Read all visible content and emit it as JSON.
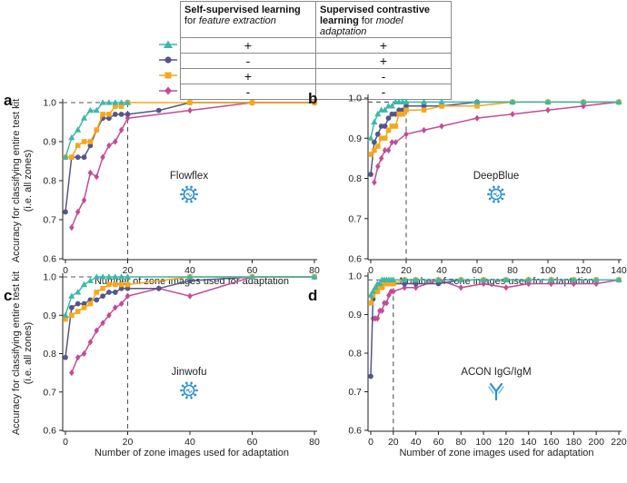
{
  "legend": {
    "col1_title": "Self-supervised learning",
    "col1_for": "for ",
    "col1_italic": "feature extraction",
    "col2_title_a": "Supervised contrastive",
    "col2_title_b": "learning",
    "col2_for": " for ",
    "col2_italic": "model adaptation",
    "rows": [
      {
        "marker": "triangle",
        "color": "#3db8a8",
        "ssl": "+",
        "scl": "+"
      },
      {
        "marker": "circle",
        "color": "#55558c",
        "ssl": "-",
        "scl": "+"
      },
      {
        "marker": "square",
        "color": "#f5a81b",
        "ssl": "+",
        "scl": "-"
      },
      {
        "marker": "diamond",
        "color": "#c24c96",
        "ssl": "-",
        "scl": "-"
      }
    ]
  },
  "shared_ylabel_line1": "Accuracy for classifying entire test kit",
  "shared_ylabel_line2": "(i.e. all zones)",
  "chart_data": [
    {
      "panel": "a",
      "type": "line",
      "title": "Flowflex",
      "icon": "virus",
      "xlabel": "Number of zone images used for adaptation",
      "xlim": [
        0,
        80
      ],
      "ylim": [
        0.6,
        1.0
      ],
      "xticks": [
        0,
        20,
        40,
        60,
        80
      ],
      "yticks": [
        0.6,
        0.7,
        0.8,
        0.9,
        1.0
      ],
      "ref_x": 20,
      "ref_y": 1.0,
      "series": [
        {
          "name": "diamond",
          "x": [
            2,
            4,
            6,
            8,
            10,
            12,
            14,
            16,
            18,
            20,
            40,
            60,
            80
          ],
          "y": [
            0.68,
            0.72,
            0.75,
            0.82,
            0.81,
            0.86,
            0.89,
            0.9,
            0.93,
            0.96,
            0.98,
            1.0,
            1.0
          ]
        },
        {
          "name": "circle",
          "x": [
            0,
            2,
            4,
            6,
            8,
            10,
            12,
            14,
            16,
            18,
            20,
            30,
            40,
            60,
            80
          ],
          "y": [
            0.72,
            0.86,
            0.86,
            0.86,
            0.89,
            0.93,
            0.96,
            0.96,
            0.97,
            0.97,
            0.97,
            0.98,
            1.0,
            1.0,
            1.0
          ]
        },
        {
          "name": "square",
          "x": [
            0,
            2,
            4,
            6,
            8,
            10,
            12,
            14,
            16,
            18,
            20,
            40,
            60,
            80
          ],
          "y": [
            0.86,
            0.86,
            0.89,
            0.9,
            0.9,
            0.93,
            0.97,
            0.97,
            0.99,
            0.99,
            1.0,
            1.0,
            1.0,
            1.0
          ]
        },
        {
          "name": "triangle",
          "x": [
            0,
            2,
            4,
            6,
            8,
            10,
            12,
            14,
            16,
            18,
            20
          ],
          "y": [
            0.86,
            0.91,
            0.93,
            0.96,
            0.98,
            0.98,
            1.0,
            1.0,
            1.0,
            1.0,
            1.0
          ]
        }
      ]
    },
    {
      "panel": "b",
      "type": "line",
      "title": "DeepBlue",
      "icon": "virus",
      "xlabel": "Number of zone images used for adaptation",
      "xlim": [
        0,
        140
      ],
      "ylim": [
        0.6,
        1.0
      ],
      "xticks": [
        0,
        20,
        40,
        60,
        80,
        100,
        120,
        140
      ],
      "yticks": [
        0.6,
        0.7,
        0.8,
        0.9,
        1.0
      ],
      "ref_x": 20,
      "ref_y": 0.99,
      "series": [
        {
          "name": "diamond",
          "x": [
            2,
            4,
            6,
            8,
            10,
            12,
            14,
            20,
            30,
            40,
            60,
            80,
            100,
            120,
            140
          ],
          "y": [
            0.79,
            0.83,
            0.85,
            0.87,
            0.87,
            0.89,
            0.89,
            0.91,
            0.92,
            0.93,
            0.95,
            0.96,
            0.97,
            0.98,
            0.99
          ]
        },
        {
          "name": "circle",
          "x": [
            0,
            2,
            4,
            6,
            8,
            10,
            12,
            14,
            16,
            18,
            20,
            30,
            40,
            60,
            80,
            100,
            120,
            140
          ],
          "y": [
            0.81,
            0.89,
            0.91,
            0.93,
            0.93,
            0.95,
            0.96,
            0.96,
            0.97,
            0.97,
            0.98,
            0.98,
            0.98,
            0.99,
            0.99,
            0.99,
            0.99,
            0.99
          ]
        },
        {
          "name": "square",
          "x": [
            0,
            2,
            4,
            6,
            8,
            10,
            12,
            14,
            16,
            18,
            20,
            30,
            40,
            60,
            80,
            100,
            120,
            140
          ],
          "y": [
            0.86,
            0.87,
            0.88,
            0.9,
            0.9,
            0.92,
            0.93,
            0.93,
            0.96,
            0.96,
            0.97,
            0.97,
            0.98,
            0.98,
            0.99,
            0.99,
            0.99,
            0.99
          ]
        },
        {
          "name": "triangle",
          "x": [
            0,
            2,
            4,
            6,
            8,
            10,
            12,
            14,
            16,
            18,
            20,
            30,
            40,
            60,
            80,
            100,
            120,
            140
          ],
          "y": [
            0.9,
            0.94,
            0.96,
            0.97,
            0.97,
            0.98,
            0.98,
            0.99,
            0.99,
            0.99,
            0.99,
            0.99,
            0.99,
            0.99,
            0.99,
            0.99,
            0.99,
            0.99
          ]
        }
      ]
    },
    {
      "panel": "c",
      "type": "line",
      "title": "Jinwofu",
      "icon": "virus",
      "xlabel": "Number of zone images used for adaptation",
      "xlim": [
        0,
        80
      ],
      "ylim": [
        0.6,
        1.0
      ],
      "xticks": [
        0,
        20,
        40,
        60,
        80
      ],
      "yticks": [
        0.6,
        0.7,
        0.8,
        0.9,
        1.0
      ],
      "ref_x": 20,
      "ref_y": 1.0,
      "series": [
        {
          "name": "diamond",
          "x": [
            2,
            4,
            6,
            8,
            10,
            12,
            14,
            16,
            18,
            20,
            30,
            40,
            60,
            80
          ],
          "y": [
            0.75,
            0.79,
            0.8,
            0.83,
            0.86,
            0.88,
            0.9,
            0.92,
            0.93,
            0.95,
            0.97,
            0.95,
            1.0,
            1.0
          ]
        },
        {
          "name": "circle",
          "x": [
            0,
            2,
            4,
            6,
            8,
            10,
            12,
            14,
            16,
            18,
            20,
            30,
            40,
            60,
            80
          ],
          "y": [
            0.79,
            0.92,
            0.93,
            0.93,
            0.94,
            0.94,
            0.95,
            0.96,
            0.96,
            0.97,
            0.97,
            0.97,
            0.99,
            1.0,
            1.0
          ]
        },
        {
          "name": "square",
          "x": [
            0,
            2,
            4,
            6,
            8,
            10,
            12,
            14,
            16,
            18,
            20,
            40,
            60,
            80
          ],
          "y": [
            0.89,
            0.9,
            0.91,
            0.92,
            0.93,
            0.96,
            0.97,
            0.98,
            0.98,
            0.98,
            0.98,
            1.0,
            1.0,
            1.0
          ]
        },
        {
          "name": "triangle",
          "x": [
            0,
            2,
            4,
            6,
            8,
            10,
            12,
            14,
            16,
            18,
            20,
            40,
            60,
            80
          ],
          "y": [
            0.9,
            0.95,
            0.96,
            0.98,
            0.99,
            1.0,
            1.0,
            1.0,
            1.0,
            1.0,
            1.0,
            1.0,
            1.0,
            1.0
          ]
        }
      ]
    },
    {
      "panel": "d",
      "type": "line",
      "title": "ACON IgG/IgM",
      "icon": "antibody",
      "xlabel": "Number of zone images used for adaptation",
      "xlim": [
        0,
        220
      ],
      "ylim": [
        0.6,
        1.0
      ],
      "xticks": [
        0,
        20,
        40,
        60,
        80,
        100,
        120,
        140,
        160,
        180,
        200,
        220
      ],
      "yticks": [
        0.6,
        0.7,
        0.8,
        0.9,
        1.0
      ],
      "ref_x": 20,
      "ref_y": 0.99,
      "series": [
        {
          "name": "diamond",
          "x": [
            2,
            4,
            6,
            8,
            10,
            12,
            14,
            16,
            18,
            20,
            30,
            40,
            60,
            80,
            100,
            120,
            140,
            160,
            180,
            200,
            220
          ],
          "y": [
            0.89,
            0.89,
            0.89,
            0.91,
            0.91,
            0.93,
            0.93,
            0.95,
            0.96,
            0.96,
            0.97,
            0.97,
            0.99,
            0.97,
            0.98,
            0.97,
            0.98,
            0.98,
            0.98,
            0.98,
            0.99
          ]
        },
        {
          "name": "circle",
          "x": [
            0,
            2,
            4,
            6,
            8,
            10,
            12,
            14,
            16,
            18,
            20,
            30,
            40,
            60,
            80,
            100,
            120,
            140,
            160,
            180,
            200,
            220
          ],
          "y": [
            0.74,
            0.94,
            0.96,
            0.97,
            0.97,
            0.97,
            0.98,
            0.98,
            0.98,
            0.98,
            0.98,
            0.98,
            0.98,
            0.98,
            0.99,
            0.99,
            0.99,
            0.99,
            0.99,
            0.99,
            0.99,
            0.99
          ]
        },
        {
          "name": "square",
          "x": [
            0,
            2,
            4,
            6,
            8,
            10,
            12,
            14,
            16,
            18,
            20,
            30,
            40,
            60,
            80,
            100,
            120,
            140,
            160,
            180,
            200,
            220
          ],
          "y": [
            0.93,
            0.95,
            0.96,
            0.96,
            0.97,
            0.97,
            0.98,
            0.98,
            0.98,
            0.98,
            0.98,
            0.99,
            0.99,
            0.99,
            0.99,
            0.99,
            0.99,
            0.99,
            0.99,
            0.99,
            0.99,
            0.99
          ]
        },
        {
          "name": "triangle",
          "x": [
            0,
            2,
            4,
            6,
            8,
            10,
            12,
            14,
            16,
            18,
            20,
            30,
            40,
            60,
            80,
            100,
            120,
            140,
            160,
            180,
            200,
            220
          ],
          "y": [
            0.95,
            0.96,
            0.97,
            0.98,
            0.98,
            0.99,
            0.99,
            0.99,
            0.99,
            0.99,
            0.99,
            0.99,
            0.99,
            0.99,
            0.99,
            0.99,
            0.99,
            0.99,
            0.99,
            0.99,
            0.99,
            0.99
          ]
        }
      ]
    }
  ]
}
